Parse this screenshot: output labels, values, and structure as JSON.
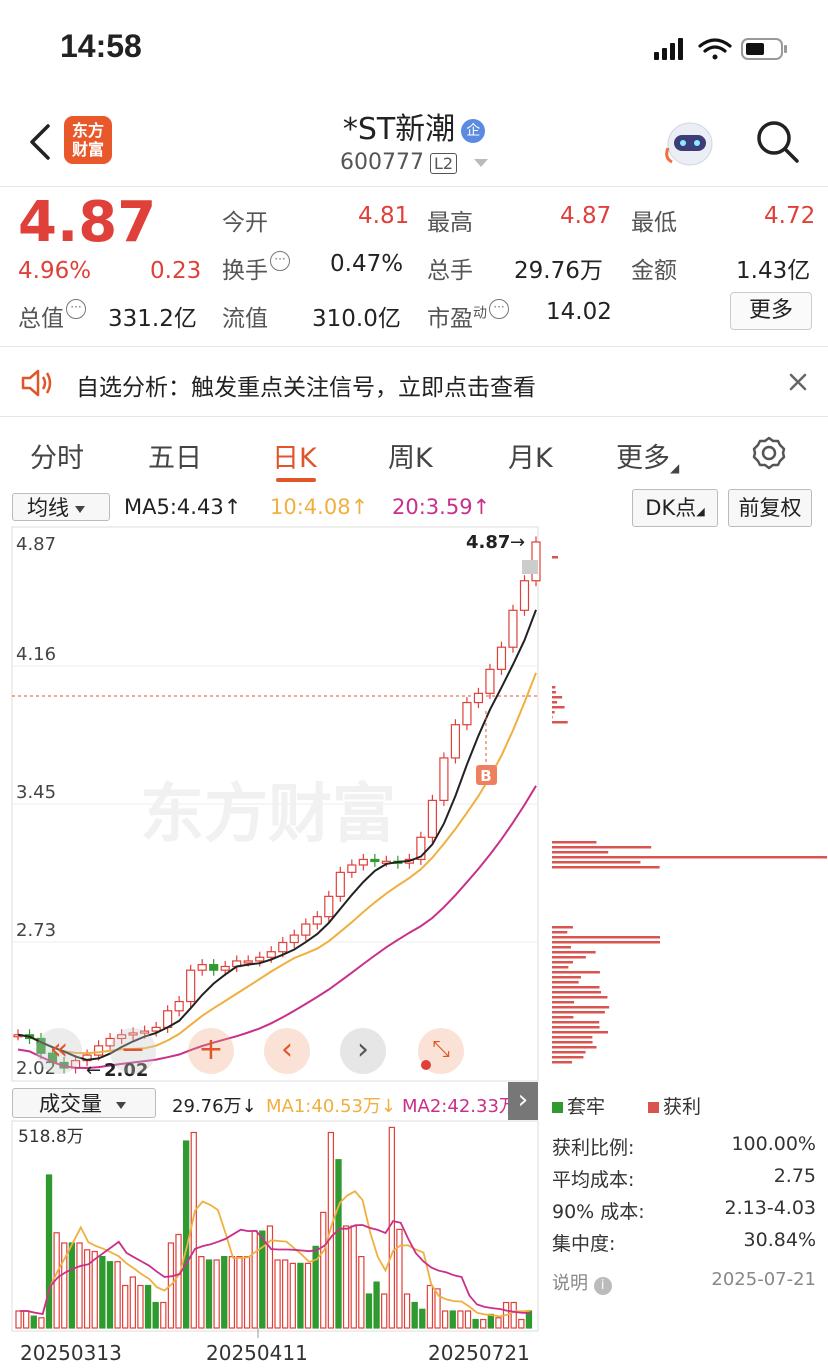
{
  "status": {
    "time": "14:58"
  },
  "header": {
    "logo_line1": "东方",
    "logo_line2": "财富",
    "name": "*ST新潮",
    "badge": "企",
    "code": "600777",
    "level": "L2"
  },
  "quote": {
    "price": "4.87",
    "change_pct": "4.96%",
    "change": "0.23",
    "open_label": "今开",
    "open": "4.81",
    "high_label": "最高",
    "high": "4.87",
    "low_label": "最低",
    "low": "4.72",
    "turnover_label": "换手",
    "turnover": "0.47%",
    "volume_label": "总手",
    "volume": "29.76万",
    "amount_label": "金额",
    "amount": "1.43亿",
    "mcap_label": "总值",
    "mcap": "331.2亿",
    "float_label": "流值",
    "float": "310.0亿",
    "pe_label": "市盈",
    "pe_sup": "动",
    "pe": "14.02",
    "more": "更多"
  },
  "notice": {
    "text": "自选分析：触发重点关注信号，立即点击查看"
  },
  "tabs": [
    "分时",
    "五日",
    "日K",
    "周K",
    "月K",
    "更多"
  ],
  "ma_bar": {
    "selector": "均线",
    "ma5": "MA5:4.43",
    "ma10": "10:4.08",
    "ma20": "20:3.59",
    "dk": "DK点",
    "fq": "前复权"
  },
  "price_axis": [
    "4.87",
    "4.16",
    "3.45",
    "2.73",
    "2.02"
  ],
  "chart_labels": {
    "high_mark": "4.87",
    "low_mark": "2.02",
    "buy_mark": "B",
    "watermark": "东方财富"
  },
  "vol_bar": {
    "selector": "成交量",
    "vol": "29.76万",
    "ma1": "MA1:40.53万",
    "ma2": "MA2:42.33万",
    "max": "518.8万"
  },
  "dates": [
    "20250313",
    "20250411",
    "20250721"
  ],
  "chips": {
    "legend_loss": "套牢",
    "legend_profit": "获利",
    "rows": [
      {
        "label": "获利比例:",
        "value": "100.00%"
      },
      {
        "label": "平均成本:",
        "value": "2.75"
      },
      {
        "label": "90% 成本:",
        "value": "2.13-4.03"
      },
      {
        "label": "集中度:",
        "value": "30.84%"
      }
    ],
    "note": "说明",
    "date": "2025-07-21"
  },
  "colors": {
    "up": "#e0403a",
    "down": "#2f9a2f",
    "ma5": "#222222",
    "ma10": "#f0b040",
    "ma20": "#c8308a",
    "accent": "#e0562b"
  }
}
